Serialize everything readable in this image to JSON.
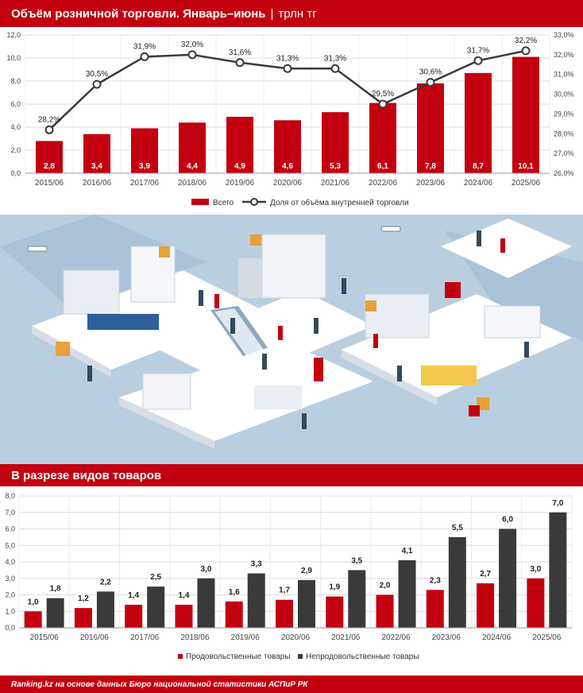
{
  "header": {
    "title_main": "Объём розничной торговли. Январь–июнь",
    "title_sep": "|",
    "title_unit": "трлн тг"
  },
  "section2": {
    "title": "В разрезе видов товаров"
  },
  "footer": {
    "source": "Ranking.kz на основе данных Бюро национальной статистики АСПиР РК"
  },
  "colors": {
    "red": "#c30010",
    "dark": "#3a3a3a",
    "grid": "#dddddd",
    "illus_bg": "#b9cfe0"
  },
  "chart_data": [
    {
      "type": "bar+line",
      "categories": [
        "2015/06",
        "2016/06",
        "2017/06",
        "2018/06",
        "2019/06",
        "2020/06",
        "2021/06",
        "2022/06",
        "2023/06",
        "2024/06",
        "2025/06"
      ],
      "series": [
        {
          "name": "Всего",
          "type": "bar",
          "axis": "left",
          "values": [
            2.8,
            3.4,
            3.9,
            4.4,
            4.9,
            4.6,
            5.3,
            6.1,
            7.8,
            8.7,
            10.1
          ],
          "labels": [
            "2,8",
            "3,4",
            "3,9",
            "4,4",
            "4,9",
            "4,6",
            "5,3",
            "6,1",
            "7,8",
            "8,7",
            "10,1"
          ]
        },
        {
          "name": "Доля от объёма внутренней торговли",
          "type": "line",
          "axis": "right",
          "values": [
            28.2,
            30.5,
            31.9,
            32.0,
            31.6,
            31.3,
            31.3,
            29.5,
            30.6,
            31.7,
            32.2
          ],
          "labels": [
            "28,2%",
            "30,5%",
            "31,9%",
            "32,0%",
            "31,6%",
            "31,3%",
            "31,3%",
            "29,5%",
            "30,6%",
            "31,7%",
            "32,2%"
          ]
        }
      ],
      "ylim": [
        0,
        12
      ],
      "yticks": [
        "0,0",
        "2,0",
        "4,0",
        "6,0",
        "8,0",
        "10,0",
        "12,0"
      ],
      "y2lim": [
        26,
        33
      ],
      "y2ticks": [
        "26,0%",
        "27,0%",
        "28,0%",
        "29,0%",
        "30,0%",
        "31,0%",
        "32,0%",
        "33,0%"
      ],
      "grid": true,
      "legend": "bottom"
    },
    {
      "type": "bar",
      "categories": [
        "2015/06",
        "2016/06",
        "2017/06",
        "2018/06",
        "2019/06",
        "2020/06",
        "2021/06",
        "2022/06",
        "2023/06",
        "2024/06",
        "2025/06"
      ],
      "series": [
        {
          "name": "Продовольственные товары",
          "values": [
            1.0,
            1.2,
            1.4,
            1.4,
            1.6,
            1.7,
            1.9,
            2.0,
            2.3,
            2.7,
            3.0
          ],
          "labels": [
            "1,0",
            "1,2",
            "1,4",
            "1,4",
            "1,6",
            "1,7",
            "1,9",
            "2,0",
            "2,3",
            "2,7",
            "3,0"
          ]
        },
        {
          "name": "Непродовольственные товары",
          "values": [
            1.8,
            2.2,
            2.5,
            3.0,
            3.3,
            2.9,
            3.5,
            4.1,
            5.5,
            6.0,
            7.0
          ],
          "labels": [
            "1,8",
            "2,2",
            "2,5",
            "3,0",
            "3,3",
            "2,9",
            "3,5",
            "4,1",
            "5,5",
            "6,0",
            "7,0"
          ]
        }
      ],
      "ylim": [
        0,
        8
      ],
      "yticks": [
        "0,0",
        "1,0",
        "2,0",
        "3,0",
        "4,0",
        "5,0",
        "6,0",
        "7,0",
        "8,0"
      ],
      "grid": true,
      "legend": "bottom"
    }
  ]
}
